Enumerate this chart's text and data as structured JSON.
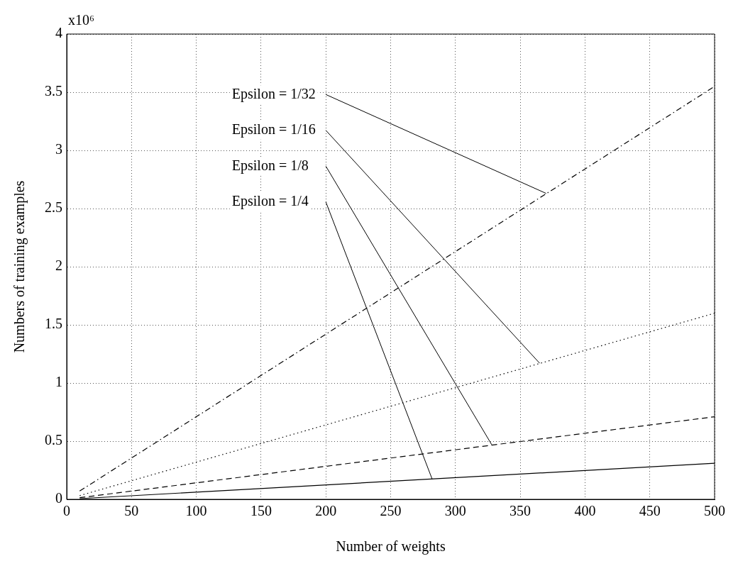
{
  "chart_data": {
    "type": "line",
    "xlabel": "Number of weights",
    "ylabel": "Numbers of training examples",
    "x": [
      10,
      500
    ],
    "series": [
      {
        "color": "#000000",
        "line_style": "solid",
        "values": [
          0.006,
          0.31
        ]
      },
      {
        "color": "#000000",
        "line_style": "dashed",
        "values": [
          0.014,
          0.71
        ]
      },
      {
        "color": "#000000",
        "line_style": "dotted",
        "values": [
          0.032,
          1.6
        ]
      },
      {
        "color": "#000000",
        "line_style": "dashdot",
        "values": [
          0.071,
          3.55
        ]
      }
    ],
    "xlim": [
      0,
      500
    ],
    "xticks": [
      0,
      50,
      100,
      150,
      200,
      250,
      300,
      350,
      400,
      450,
      500
    ],
    "ylim": [
      0,
      4
    ],
    "yticks": [
      0,
      0.5,
      1,
      1.5,
      2,
      2.5,
      3,
      3.5,
      4
    ],
    "grid": true,
    "legend": false,
    "marker": "none",
    "annotations": [
      "x10⁶",
      {
        "text": "Epsilon = 1/32",
        "x": 370,
        "y": 2.63
      },
      {
        "text": "Epsilon = 1/16",
        "x": 365,
        "y": 1.17
      },
      {
        "text": "Epsilon = 1/8",
        "x": 328,
        "y": 0.47
      },
      {
        "text": "Epsilon = 1/4",
        "x": 282,
        "y": 0.175
      }
    ]
  }
}
